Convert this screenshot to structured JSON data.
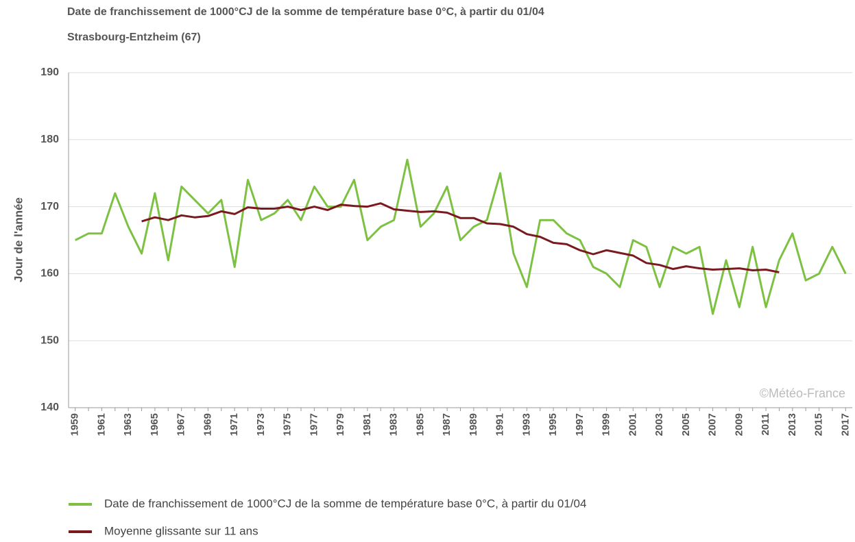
{
  "chart_data": {
    "type": "line",
    "title": "Date de franchissement de 1000°CJ de la somme de température base 0°C, à partir du 01/04",
    "subtitle": "Strasbourg-Entzheim (67)",
    "y_label": "Jour de l'année",
    "watermark": "©Météo-France",
    "categories": [
      "1959",
      null,
      "1961",
      null,
      "1963",
      null,
      "1965",
      null,
      "1967",
      null,
      "1969",
      null,
      "1971",
      null,
      "1973",
      null,
      "1975",
      null,
      "1977",
      null,
      "1979",
      null,
      "1981",
      null,
      "1983",
      null,
      "1985",
      null,
      "1987",
      null,
      "1989",
      null,
      "1991",
      null,
      "1993",
      null,
      "1995",
      null,
      "1997",
      null,
      "1999",
      null,
      "2001",
      null,
      "2003",
      null,
      "2005",
      null,
      "2007",
      null,
      "2009",
      null,
      "2011",
      null,
      "2013",
      null,
      "2015",
      null,
      "2017"
    ],
    "series": [
      {
        "name": "Date de franchissement de 1000°CJ de la somme de température base 0°C, à partir du 01/04",
        "color": "#7dc142",
        "values": [
          165,
          166,
          166,
          172,
          167,
          163,
          172,
          162,
          173,
          171,
          169,
          171,
          161,
          174,
          168,
          169,
          171,
          168,
          173,
          170,
          170,
          174,
          165,
          167,
          168,
          177,
          167,
          169,
          173,
          165,
          167,
          168,
          175,
          163,
          158,
          168,
          168,
          166,
          165,
          161,
          160,
          158,
          165,
          164,
          158,
          164,
          163,
          164,
          154,
          162,
          155,
          164,
          155,
          162,
          166,
          159,
          160,
          164,
          160
        ]
      },
      {
        "name": "Moyenne glissante sur 11 ans",
        "color": "#7b1a1e",
        "values": [
          null,
          null,
          null,
          null,
          null,
          167.8,
          168.4,
          168.0,
          168.7,
          168.4,
          168.6,
          169.3,
          168.9,
          169.9,
          169.7,
          169.7,
          170.0,
          169.5,
          170.0,
          169.5,
          170.3,
          170.1,
          170.0,
          170.5,
          169.6,
          169.4,
          169.2,
          169.3,
          169.1,
          168.3,
          168.3,
          167.5,
          167.4,
          167.0,
          165.9,
          165.5,
          164.6,
          164.4,
          163.5,
          162.9,
          163.5,
          163.1,
          162.7,
          161.6,
          161.3,
          160.7,
          161.1,
          160.8,
          160.6,
          160.7,
          160.8,
          160.5,
          160.6,
          160.2,
          null,
          null,
          null,
          null,
          null
        ]
      }
    ],
    "ylim": [
      140,
      190
    ],
    "yticks": [
      140,
      150,
      160,
      170,
      180,
      190
    ],
    "grid": true,
    "legend": "bottom"
  }
}
